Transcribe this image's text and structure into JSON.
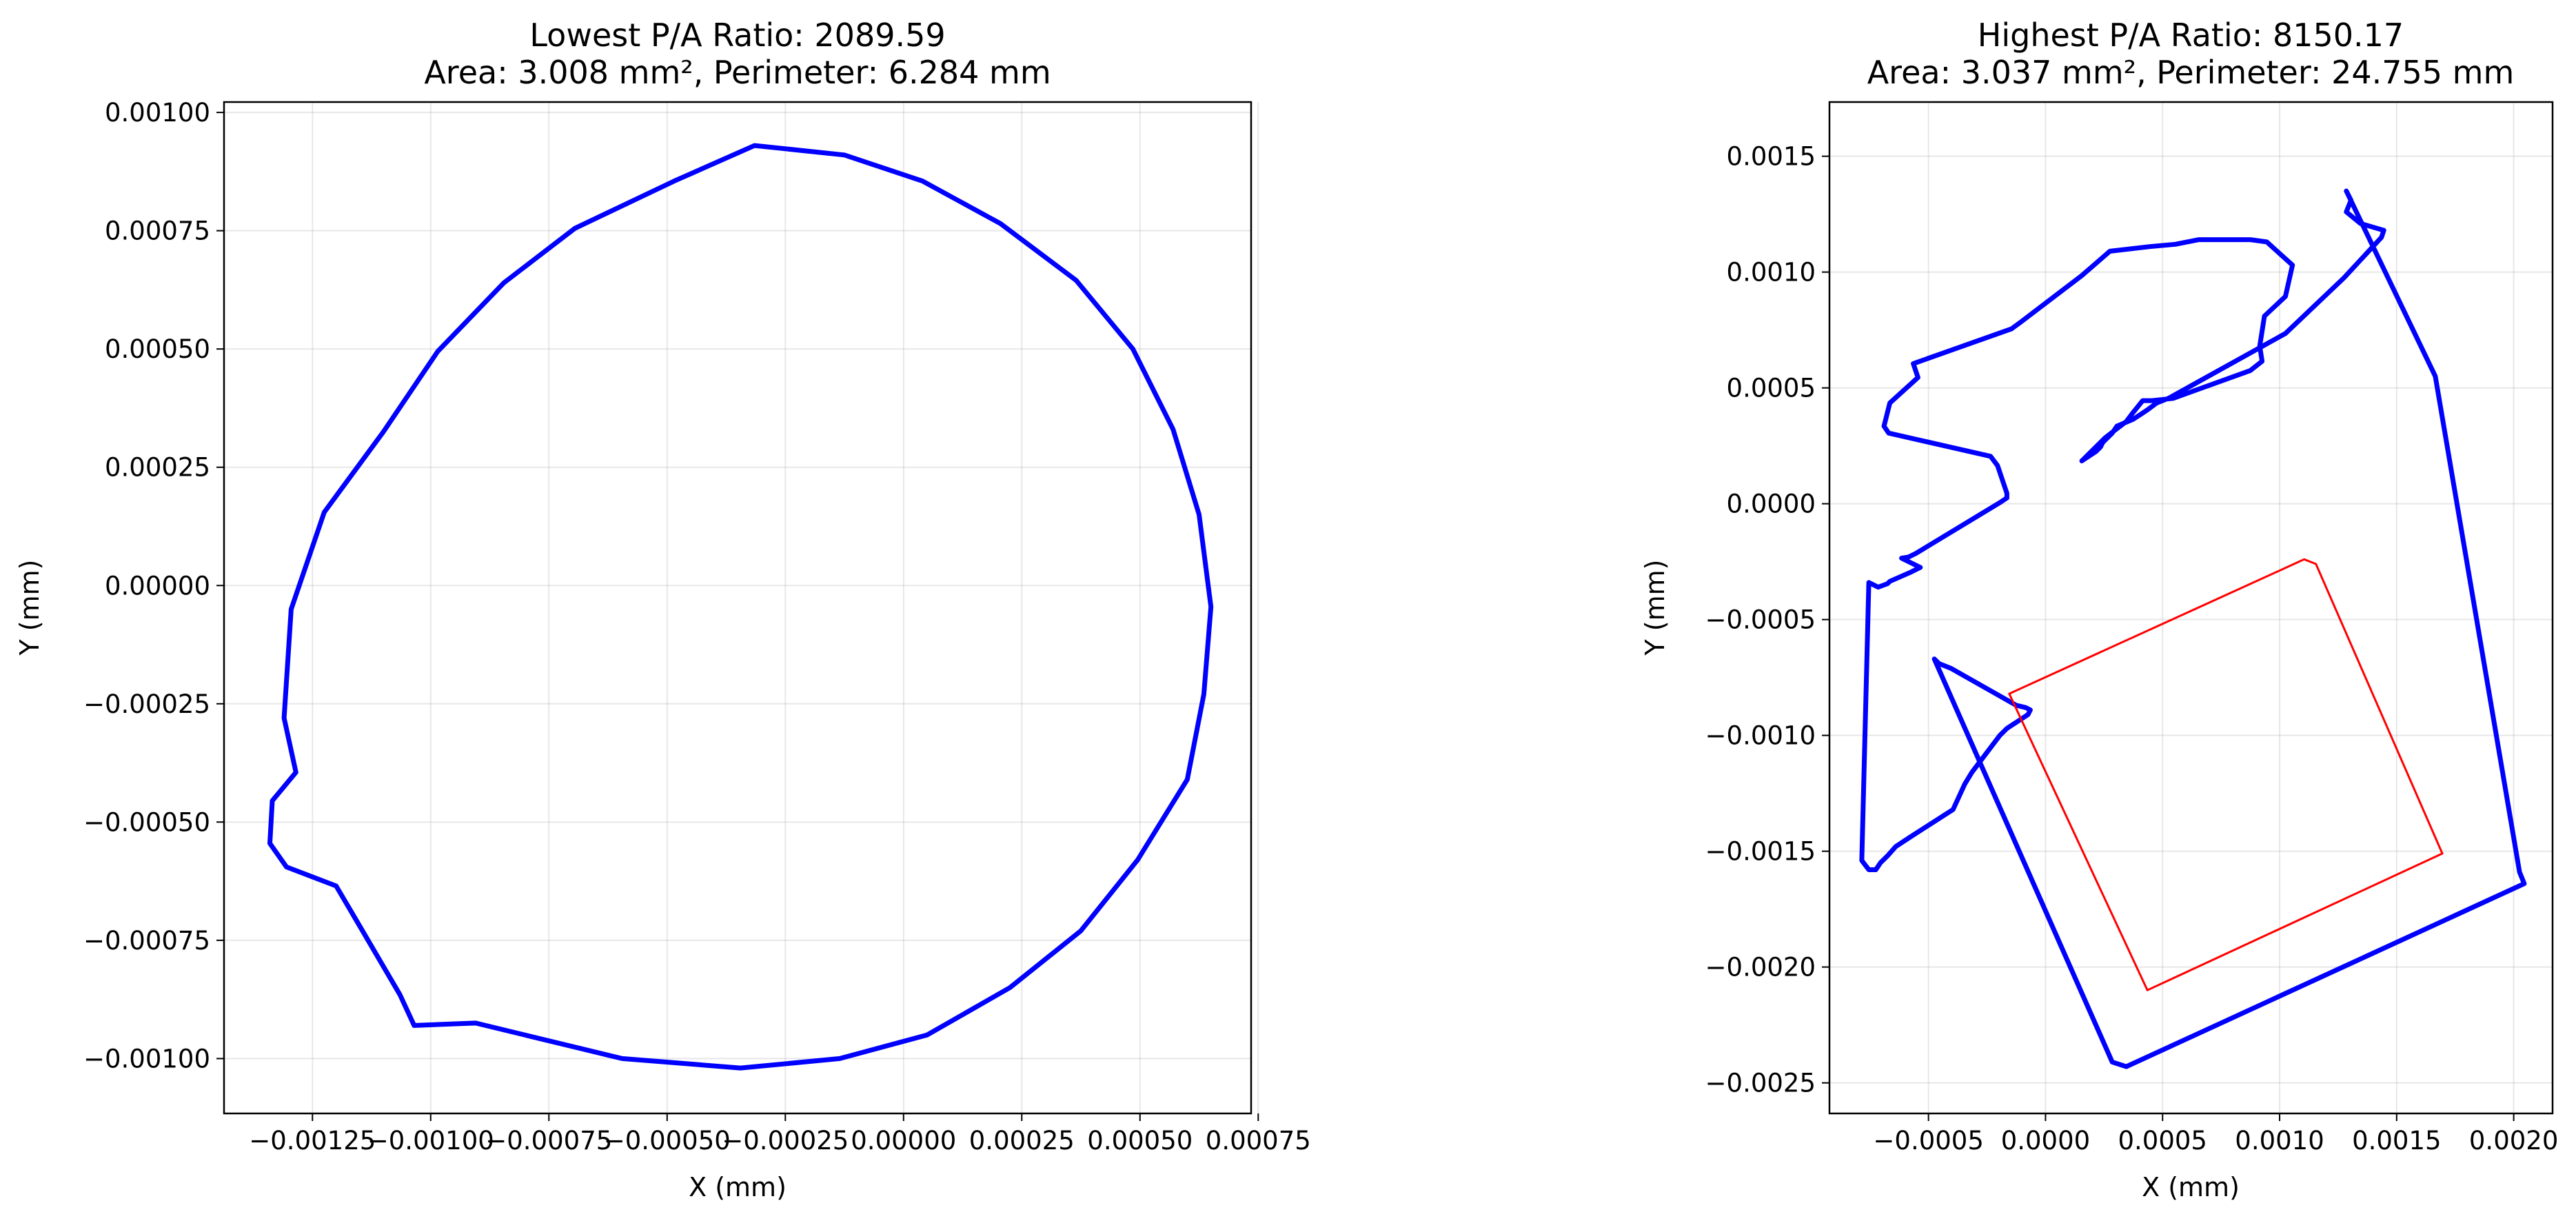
{
  "chart_data": [
    {
      "type": "line",
      "title": "Lowest P/A Ratio: 2089.59",
      "subtitle": "Area: 3.008 mm², Perimeter: 6.284 mm",
      "xlabel": "X (mm)",
      "ylabel": "Y (mm)",
      "xlim": [
        -0.001437,
        0.000735
      ],
      "ylim": [
        -0.001116,
        0.001022
      ],
      "xticks": [
        -0.00125,
        -0.001,
        -0.00075,
        -0.0005,
        -0.00025,
        0.0,
        0.00025,
        0.0005,
        0.00075
      ],
      "xtick_labels": [
        "−0.00125",
        "−0.00100",
        "−0.00075",
        "−0.00050",
        "−0.00025",
        "0.00000",
        "0.00025",
        "0.00050",
        "0.00075"
      ],
      "yticks": [
        0.001,
        0.00075,
        0.0005,
        0.00025,
        0.0,
        -0.00025,
        -0.0005,
        -0.00075,
        -0.001
      ],
      "ytick_labels": [
        "0.00100",
        "0.00075",
        "0.00050",
        "0.00025",
        "0.00000",
        "−0.00025",
        "−0.00050",
        "−0.00075",
        "−0.00100"
      ],
      "grid": true,
      "series": [
        {
          "color": "#0000ff",
          "x": [
            -0.000315,
            -0.000125,
            4e-05,
            0.000205,
            0.000365,
            0.000485,
            0.00057,
            0.000625,
            0.00065,
            0.000635,
            0.0006,
            0.000495,
            0.000375,
            0.000225,
            5e-05,
            -0.000135,
            -0.000345,
            -0.000595,
            -0.000905,
            -0.001035,
            -0.001065,
            -0.00115,
            -0.0012,
            -0.001305,
            -0.00134,
            -0.001335,
            -0.001285,
            -0.00131,
            -0.001295,
            -0.001225,
            -0.0011,
            -0.000985,
            -0.000845,
            -0.000695,
            -0.000485
          ],
          "y": [
            0.00093,
            0.00091,
            0.000855,
            0.000765,
            0.000645,
            0.0005,
            0.00033,
            0.00015,
            -4.5e-05,
            -0.00023,
            -0.00041,
            -0.00058,
            -0.00073,
            -0.00085,
            -0.00095,
            -0.001,
            -0.00102,
            -0.001,
            -0.000925,
            -0.00093,
            -0.000865,
            -0.00072,
            -0.000635,
            -0.000595,
            -0.000545,
            -0.000455,
            -0.000395,
            -0.00028,
            -5e-05,
            0.000155,
            0.000325,
            0.000495,
            0.00064,
            0.000755,
            0.000855
          ]
        }
      ]
    },
    {
      "type": "line",
      "title": "Highest P/A Ratio: 8150.17",
      "subtitle": "Area: 3.037 mm², Perimeter: 24.755 mm",
      "xlabel": "X (mm)",
      "ylabel": "Y (mm)",
      "xlim": [
        -0.000923,
        0.002166
      ],
      "ylim": [
        -0.002632,
        0.001734
      ],
      "xticks": [
        -0.0005,
        0.0,
        0.0005,
        0.001,
        0.0015,
        0.002
      ],
      "xtick_labels": [
        "−0.0005",
        "0.0000",
        "0.0005",
        "0.0010",
        "0.0015",
        "0.0020"
      ],
      "yticks": [
        0.0015,
        0.001,
        0.0005,
        0.0,
        -0.0005,
        -0.001,
        -0.0015,
        -0.002,
        -0.0025
      ],
      "ytick_labels": [
        "0.0015",
        "0.0010",
        "0.0005",
        "0.0000",
        "−0.0005",
        "−0.0010",
        "−0.0015",
        "−0.0020",
        "−0.0025"
      ],
      "grid": true,
      "series": [
        {
          "color": "#0000ff",
          "x": [
            -0.000755,
            -0.000715,
            -0.000675,
            -0.000665,
            -0.000575,
            -0.000535,
            -0.000615,
            -0.000585,
            -0.000555,
            -0.000195,
            -0.000165,
            -0.000165,
            -0.000205,
            -0.000235,
            -0.00067,
            -0.00069,
            -0.000665,
            -0.000545,
            -0.000565,
            -0.000145,
            -0.000105,
            0.000155,
            0.000275,
            0.000445,
            0.000555,
            0.000655,
            0.000875,
            0.000945,
            0.001055,
            0.001025,
            0.000935,
            0.000915,
            0.000925,
            0.000875,
            0.000545,
            0.000455,
            0.000415,
            0.000375,
            0.000345,
            0.000255,
            0.000195,
            0.000155,
            0.000215,
            0.000235,
            0.000245,
            0.000285,
            0.000305,
            0.000375,
            0.000405,
            0.000435,
            0.000475,
            0.000525,
            0.001025,
            0.001275,
            0.001435,
            0.001445,
            0.001345,
            0.001285,
            0.001305,
            0.001285,
            0.001665,
            0.002025,
            0.002045,
            0.000345,
            0.000285,
            -0.000475,
            -0.000455,
            -0.000405,
            -0.000125,
            -8.5e-05,
            -6.5e-05,
            -7.5e-05,
            -0.000165,
            -0.000195,
            -0.000315,
            -0.000345,
            -0.000395,
            -0.00058,
            -0.00064,
            -0.000675,
            -0.000705,
            -0.000725,
            -0.000755,
            -0.000785
          ],
          "y": [
            -0.00034,
            -0.00036,
            -0.000345,
            -0.000335,
            -0.000295,
            -0.000275,
            -0.000235,
            -0.00023,
            -0.000215,
            5e-06,
            2.5e-05,
            4.5e-05,
            0.000165,
            0.000205,
            0.000305,
            0.000335,
            0.000435,
            0.000545,
            0.000605,
            0.000755,
            0.000785,
            0.000985,
            0.00109,
            0.00111,
            0.00112,
            0.00114,
            0.00114,
            0.00113,
            0.00103,
            0.000895,
            0.00081,
            0.00068,
            0.000615,
            0.000575,
            0.000455,
            0.000445,
            0.000445,
            0.000395,
            0.000355,
            0.000285,
            0.000225,
            0.000185,
            0.000225,
            0.000245,
            0.000265,
            0.000305,
            0.000335,
            0.000365,
            0.000385,
            0.000405,
            0.000435,
            0.000455,
            0.000735,
            0.000975,
            0.00115,
            0.00118,
            0.00121,
            0.00126,
            0.00131,
            0.00135,
            0.00055,
            -0.00159,
            -0.00164,
            -0.00243,
            -0.00241,
            -0.00067,
            -0.00069,
            -0.00071,
            -0.00087,
            -0.00088,
            -0.00089,
            -0.00091,
            -0.00097,
            -0.001,
            -0.00116,
            -0.00121,
            -0.00132,
            -0.00144,
            -0.00148,
            -0.00152,
            -0.00155,
            -0.00158,
            -0.00158,
            -0.00154
          ],
          "note": ""
        },
        {
          "color": "#ff0000",
          "x": [
            -0.000155,
            0.001105,
            0.001155,
            0.001695,
            0.000435,
            -0.000155
          ],
          "y": [
            -0.00082,
            -0.00024,
            -0.00026,
            -0.00151,
            -0.0021,
            -0.00082
          ]
        }
      ]
    }
  ]
}
